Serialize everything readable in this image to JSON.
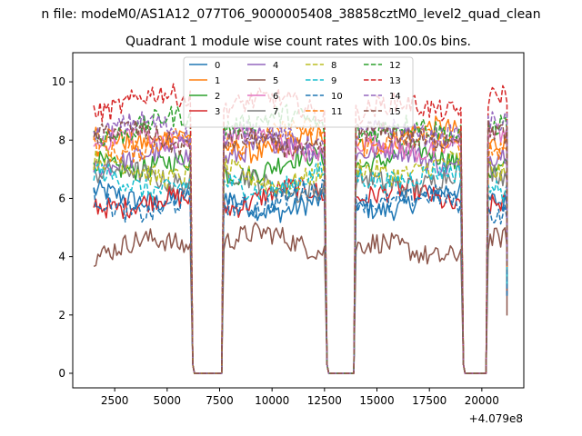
{
  "suptitle": "n file: modeM0/AS1A12_077T06_9000005408_38858cztM0_level2_quad_clean",
  "chart_data": {
    "type": "line",
    "title": "Quadrant 1 module wise count rates with 100.0s bins.",
    "xlabel": "",
    "ylabel": "",
    "x_offset_label": "+4.079e8",
    "xlim": [
      500,
      22000
    ],
    "ylim": [
      -0.5,
      11
    ],
    "xticks": [
      2500,
      5000,
      7500,
      10000,
      12500,
      15000,
      17500,
      20000
    ],
    "yticks": [
      0,
      2,
      4,
      6,
      8,
      10
    ],
    "grid": false,
    "legend_placement": "top-center",
    "legend_columns": 4,
    "segments": [
      [
        1500,
        6100
      ],
      [
        7700,
        12500
      ],
      [
        14000,
        19000
      ],
      [
        20300,
        21200
      ]
    ],
    "gaps": [
      [
        6100,
        7700
      ],
      [
        12500,
        14000
      ],
      [
        19000,
        20300
      ]
    ],
    "series": [
      {
        "name": "0",
        "mean": 5.9,
        "color": "#1f77b4",
        "dash": "solid"
      },
      {
        "name": "1",
        "mean": 8.0,
        "color": "#ff7f0e",
        "dash": "solid"
      },
      {
        "name": "2",
        "mean": 7.2,
        "color": "#2ca02c",
        "dash": "solid"
      },
      {
        "name": "3",
        "mean": 6.0,
        "color": "#d62728",
        "dash": "solid"
      },
      {
        "name": "4",
        "mean": 7.5,
        "color": "#9467bd",
        "dash": "solid"
      },
      {
        "name": "5",
        "mean": 4.4,
        "color": "#8c564b",
        "dash": "solid"
      },
      {
        "name": "6",
        "mean": 7.9,
        "color": "#e377c2",
        "dash": "solid"
      },
      {
        "name": "7",
        "mean": 6.6,
        "color": "#7f7f7f",
        "dash": "solid"
      },
      {
        "name": "8",
        "mean": 6.9,
        "color": "#bcbd22",
        "dash": "dashed"
      },
      {
        "name": "9",
        "mean": 6.6,
        "color": "#17becf",
        "dash": "dashed"
      },
      {
        "name": "10",
        "mean": 5.9,
        "color": "#1f77b4",
        "dash": "dashed"
      },
      {
        "name": "11",
        "mean": 8.0,
        "color": "#ff7f0e",
        "dash": "dashed"
      },
      {
        "name": "12",
        "mean": 8.5,
        "color": "#2ca02c",
        "dash": "dashed"
      },
      {
        "name": "13",
        "mean": 9.2,
        "color": "#d62728",
        "dash": "dashed"
      },
      {
        "name": "14",
        "mean": 8.2,
        "color": "#9467bd",
        "dash": "dashed"
      },
      {
        "name": "15",
        "mean": 8.0,
        "color": "#8c564b",
        "dash": "dashed"
      }
    ]
  }
}
